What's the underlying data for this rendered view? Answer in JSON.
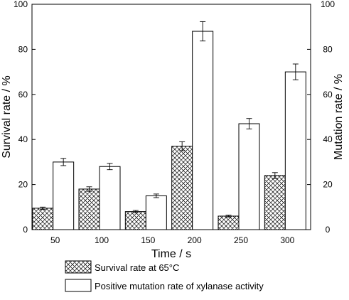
{
  "chart_data": {
    "type": "bar",
    "xlabel": "Time / s",
    "ylabel_left": "Survival rate / %",
    "ylabel_right": "Mutation rate / %",
    "ylim": [
      0,
      100
    ],
    "y_ticks": [
      "0",
      "20",
      "40",
      "60",
      "80",
      "100"
    ],
    "y_tick_values": [
      0,
      20,
      40,
      60,
      80,
      100
    ],
    "categories": [
      "50",
      "100",
      "150",
      "200",
      "250",
      "300"
    ],
    "series": [
      {
        "name": "Survival rate at 65°C",
        "axis": "left",
        "pattern": "crosshatch",
        "values": [
          9.5,
          18,
          8,
          37,
          6,
          24
        ],
        "errors": [
          0.5,
          1,
          0.5,
          2,
          0.4,
          1.3
        ]
      },
      {
        "name": "Positive mutation rate of xylanase activity",
        "axis": "right",
        "pattern": "none",
        "values": [
          30,
          28,
          15,
          88,
          47,
          70
        ],
        "errors": [
          1.6,
          1.4,
          0.8,
          4.3,
          2.3,
          3.5
        ]
      }
    ],
    "grid": false,
    "legend_position": "bottom"
  }
}
